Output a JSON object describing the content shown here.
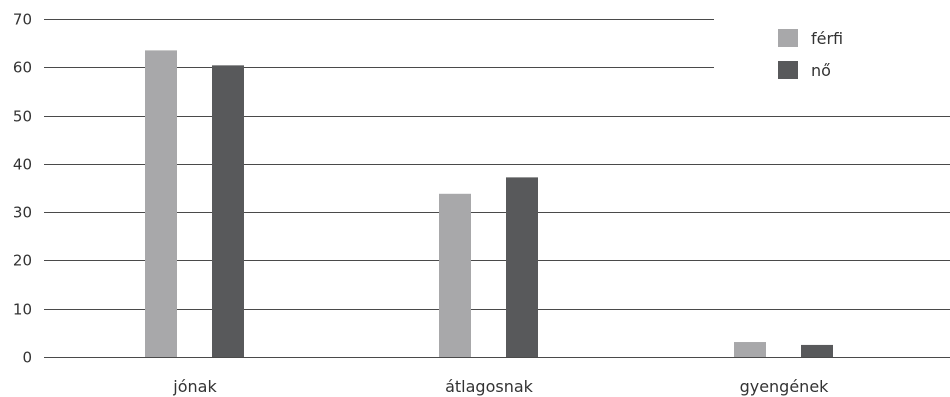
{
  "chart_data": {
    "type": "bar",
    "title": "",
    "xlabel": "",
    "ylabel": "",
    "categories": [
      "jónak",
      "átlagosnak",
      "gyengének"
    ],
    "series": [
      {
        "name": "férfi",
        "values": [
          63.5,
          33.8,
          3.1
        ],
        "color": "#a8a8aa"
      },
      {
        "name": "nő",
        "values": [
          60.4,
          37.2,
          2.5
        ],
        "color": "#58595b"
      }
    ],
    "ylim": [
      0,
      70
    ],
    "yticks": [
      0,
      10,
      20,
      30,
      40,
      50,
      60,
      70
    ],
    "grid": true,
    "legend_position": "top-right"
  }
}
